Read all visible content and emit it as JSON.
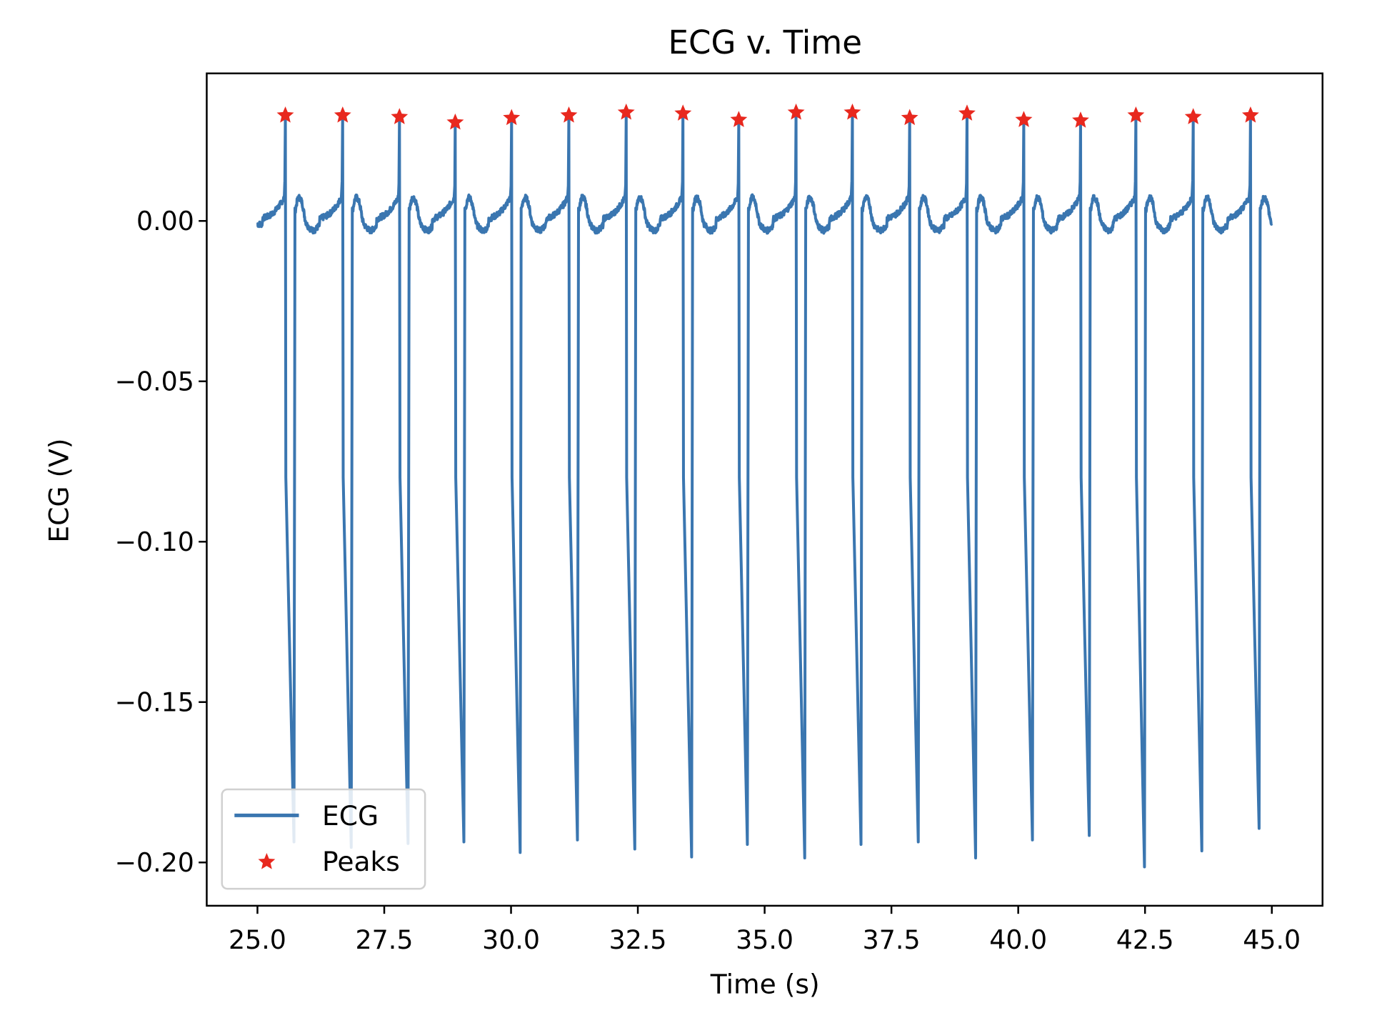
{
  "chart_data": {
    "type": "line",
    "title": "ECG v. Time",
    "xlabel": "Time (s)",
    "ylabel": "ECG (V)",
    "xlim": [
      24.0,
      46.0
    ],
    "ylim": [
      -0.2135,
      0.046
    ],
    "xticks": [
      "25.0",
      "27.5",
      "30.0",
      "32.5",
      "35.0",
      "37.5",
      "40.0",
      "42.5",
      "45.0"
    ],
    "yticks": [
      "0.00",
      "−0.05",
      "−0.10",
      "−0.15",
      "−0.20"
    ],
    "grid": false,
    "legend": {
      "placement": "lower left",
      "entries": [
        "ECG",
        "Peaks"
      ]
    },
    "series": [
      {
        "name": "ECG",
        "color": "#3a76b0",
        "x_range": [
          25.0,
          45.0
        ],
        "beat_peak_times": [
          25.55,
          26.68,
          27.8,
          28.9,
          30.01,
          31.14,
          32.27,
          33.39,
          34.49,
          35.62,
          36.73,
          37.86,
          38.99,
          40.11,
          41.23,
          42.32,
          43.45,
          44.58
        ],
        "beat_trough_values": [
          -0.1936,
          -0.1953,
          -0.1941,
          -0.1936,
          -0.1969,
          -0.193,
          -0.1958,
          -0.1983,
          -0.1944,
          -0.1986,
          -0.1944,
          -0.1936,
          -0.1986,
          -0.193,
          -0.1916,
          -0.2014,
          -0.1964,
          -0.1894
        ],
        "baseline": 0.0,
        "t_wave": 0.008
      },
      {
        "name": "Peaks",
        "color": "#e8281e",
        "marker": "star",
        "x": [
          25.55,
          26.68,
          27.8,
          28.9,
          30.01,
          31.14,
          32.27,
          33.39,
          34.49,
          35.62,
          36.73,
          37.86,
          38.99,
          40.11,
          41.23,
          42.32,
          43.45,
          44.58
        ],
        "y": [
          0.0332,
          0.0332,
          0.0327,
          0.031,
          0.0324,
          0.0332,
          0.0341,
          0.0338,
          0.0318,
          0.0341,
          0.0341,
          0.0324,
          0.0338,
          0.0318,
          0.0316,
          0.0332,
          0.0327,
          0.0332
        ]
      }
    ]
  }
}
